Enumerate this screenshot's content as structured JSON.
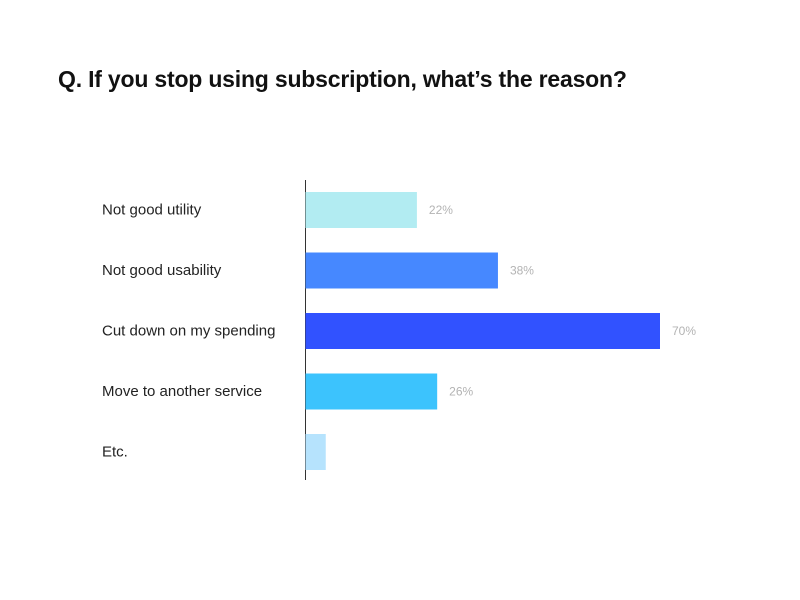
{
  "chart_data": {
    "type": "bar",
    "orientation": "horizontal",
    "title": "Q. If you stop using subscription, what’s the reason?",
    "xlabel": "",
    "ylabel": "",
    "categories": [
      "Not good utility",
      "Not good usability",
      "Cut down on my spending",
      "Move to another service",
      "Etc."
    ],
    "values": [
      22,
      38,
      70,
      26,
      4
    ],
    "value_labels": [
      "22%",
      "38%",
      "70%",
      "26%",
      ""
    ],
    "unit": "%",
    "xlim": [
      0,
      70
    ],
    "grid": false,
    "legend": "none",
    "colors": [
      "#b2ecf2",
      "#4688ff",
      "#3152ff",
      "#3cc3fd",
      "#b6e3fd"
    ]
  }
}
